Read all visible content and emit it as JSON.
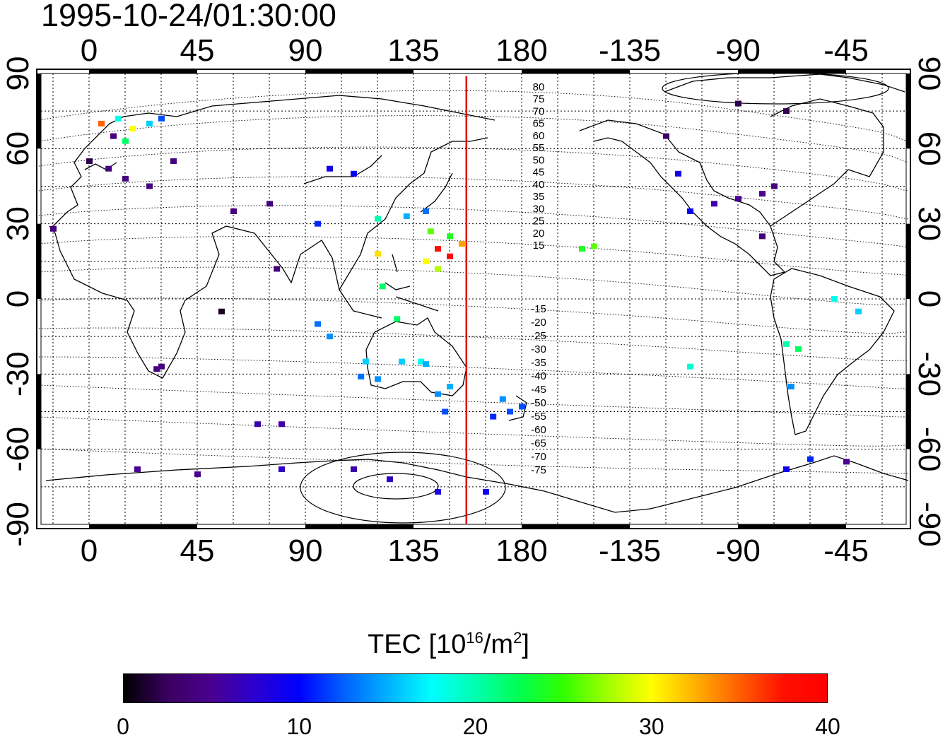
{
  "title": "1995-10-24/01:30:00",
  "lon_ticks": [
    0,
    45,
    90,
    135,
    180,
    -135,
    -90,
    -45
  ],
  "lat_ticks": [
    90,
    60,
    30,
    0,
    -30,
    -60,
    -90
  ],
  "map": {
    "lon_range": [
      -20,
      340
    ],
    "lat_range": [
      -90,
      90
    ],
    "gridlines": "dotted",
    "terminator_lon": 157,
    "terminator_color": "#e00000"
  },
  "mlat_north_labels": [
    "80",
    "75",
    "70",
    "65",
    "60",
    "55",
    "50",
    "45",
    "40",
    "35",
    "30",
    "25",
    "20",
    "15"
  ],
  "mlat_south_labels": [
    "-15",
    "-20",
    "-25",
    "-30",
    "-35",
    "-40",
    "-45",
    "-50",
    "-55",
    "-60",
    "-65",
    "-70",
    "-75"
  ],
  "colorbar": {
    "title": "TEC  [10",
    "exponent": "16",
    "unit_tail": "/m",
    "unit_exp": "2",
    "close": "]",
    "min": 0,
    "max": 40,
    "tick_labels": [
      "0",
      "10",
      "20",
      "30",
      "40"
    ],
    "colormap": [
      "#000000",
      "#3a0060",
      "#4a0090",
      "#2a00d0",
      "#0000ff",
      "#0060ff",
      "#00b0ff",
      "#00ffff",
      "#00ffb0",
      "#00ff50",
      "#30ff00",
      "#a0ff00",
      "#ffff00",
      "#ffb000",
      "#ff6000",
      "#ff1000",
      "#ff0000"
    ]
  },
  "chart_data": {
    "type": "map-scatter",
    "value_name": "TEC",
    "regions": [
      {
        "lon": 10,
        "lat": 65,
        "tec": 4
      },
      {
        "lon": 5,
        "lat": 70,
        "tec": 35
      },
      {
        "lon": 18,
        "lat": 68,
        "tec": 30
      },
      {
        "lon": 12,
        "lat": 72,
        "tec": 18
      },
      {
        "lon": 25,
        "lat": 70,
        "tec": 16
      },
      {
        "lon": 15,
        "lat": 63,
        "tec": 22
      },
      {
        "lon": 30,
        "lat": 72,
        "tec": 12
      },
      {
        "lon": 8,
        "lat": 52,
        "tec": 4
      },
      {
        "lon": 15,
        "lat": 48,
        "tec": 4
      },
      {
        "lon": 25,
        "lat": 45,
        "tec": 4
      },
      {
        "lon": 0,
        "lat": 55,
        "tec": 2
      },
      {
        "lon": 35,
        "lat": 55,
        "tec": 4
      },
      {
        "lon": 75,
        "lat": 38,
        "tec": 4
      },
      {
        "lon": 60,
        "lat": 35,
        "tec": 4
      },
      {
        "lon": -15,
        "lat": 28,
        "tec": 4
      },
      {
        "lon": 78,
        "lat": 12,
        "tec": 4
      },
      {
        "lon": 55,
        "lat": -5,
        "tec": 1
      },
      {
        "lon": 28,
        "lat": -28,
        "tec": 4
      },
      {
        "lon": 30,
        "lat": -27,
        "tec": 4
      },
      {
        "lon": 100,
        "lat": 52,
        "tec": 9
      },
      {
        "lon": 110,
        "lat": 50,
        "tec": 10
      },
      {
        "lon": 95,
        "lat": 30,
        "tec": 11
      },
      {
        "lon": 140,
        "lat": 35,
        "tec": 13
      },
      {
        "lon": 132,
        "lat": 33,
        "tec": 15
      },
      {
        "lon": 120,
        "lat": 32,
        "tec": 20
      },
      {
        "lon": 142,
        "lat": 27,
        "tec": 26
      },
      {
        "lon": 150,
        "lat": 25,
        "tec": 24
      },
      {
        "lon": 155,
        "lat": 22,
        "tec": 33
      },
      {
        "lon": 145,
        "lat": 20,
        "tec": 38
      },
      {
        "lon": 150,
        "lat": 17,
        "tec": 39
      },
      {
        "lon": 140,
        "lat": 15,
        "tec": 30
      },
      {
        "lon": 145,
        "lat": 12,
        "tec": 28
      },
      {
        "lon": 120,
        "lat": 18,
        "tec": 31
      },
      {
        "lon": 122,
        "lat": 5,
        "tec": 22
      },
      {
        "lon": 128,
        "lat": -8,
        "tec": 22
      },
      {
        "lon": 95,
        "lat": -10,
        "tec": 13
      },
      {
        "lon": 100,
        "lat": -15,
        "tec": 14
      },
      {
        "lon": 115,
        "lat": -25,
        "tec": 16
      },
      {
        "lon": 113,
        "lat": -31,
        "tec": 13
      },
      {
        "lon": 120,
        "lat": -32,
        "tec": 14
      },
      {
        "lon": 130,
        "lat": -25,
        "tec": 16
      },
      {
        "lon": 138,
        "lat": -25,
        "tec": 18
      },
      {
        "lon": 140,
        "lat": -26,
        "tec": 15
      },
      {
        "lon": 145,
        "lat": -38,
        "tec": 14
      },
      {
        "lon": 150,
        "lat": -35,
        "tec": 15
      },
      {
        "lon": 148,
        "lat": -45,
        "tec": 12
      },
      {
        "lon": 172,
        "lat": -40,
        "tec": 14
      },
      {
        "lon": 175,
        "lat": -45,
        "tec": 12
      },
      {
        "lon": 168,
        "lat": -47,
        "tec": 11
      },
      {
        "lon": 180,
        "lat": -43,
        "tec": 12
      },
      {
        "lon": 70,
        "lat": -50,
        "tec": 6
      },
      {
        "lon": 80,
        "lat": -50,
        "tec": 6
      },
      {
        "lon": 20,
        "lat": -68,
        "tec": 5
      },
      {
        "lon": 45,
        "lat": -70,
        "tec": 5
      },
      {
        "lon": 80,
        "lat": -68,
        "tec": 7
      },
      {
        "lon": 110,
        "lat": -68,
        "tec": 6
      },
      {
        "lon": 125,
        "lat": -72,
        "tec": 7
      },
      {
        "lon": 145,
        "lat": -77,
        "tec": 8
      },
      {
        "lon": 165,
        "lat": -77,
        "tec": 9
      },
      {
        "lon": -155,
        "lat": 20,
        "tec": 24
      },
      {
        "lon": -150,
        "lat": 21,
        "tec": 26
      },
      {
        "lon": -115,
        "lat": 50,
        "tec": 9
      },
      {
        "lon": -110,
        "lat": 35,
        "tec": 10
      },
      {
        "lon": -100,
        "lat": 38,
        "tec": 6
      },
      {
        "lon": -90,
        "lat": 40,
        "tec": 5
      },
      {
        "lon": -80,
        "lat": 42,
        "tec": 5
      },
      {
        "lon": -75,
        "lat": 45,
        "tec": 4
      },
      {
        "lon": -80,
        "lat": 25,
        "tec": 4
      },
      {
        "lon": -120,
        "lat": 65,
        "tec": 3
      },
      {
        "lon": -90,
        "lat": 78,
        "tec": 2
      },
      {
        "lon": -70,
        "lat": 75,
        "tec": 2
      },
      {
        "lon": -50,
        "lat": 0,
        "tec": 18
      },
      {
        "lon": -40,
        "lat": -5,
        "tec": 16
      },
      {
        "lon": -70,
        "lat": -18,
        "tec": 20
      },
      {
        "lon": -65,
        "lat": -20,
        "tec": 22
      },
      {
        "lon": -110,
        "lat": -27,
        "tec": 19
      },
      {
        "lon": -68,
        "lat": -35,
        "tec": 14
      },
      {
        "lon": -60,
        "lat": -64,
        "tec": 11
      },
      {
        "lon": -70,
        "lat": -68,
        "tec": 9
      },
      {
        "lon": -45,
        "lat": -65,
        "tec": 5
      }
    ]
  }
}
